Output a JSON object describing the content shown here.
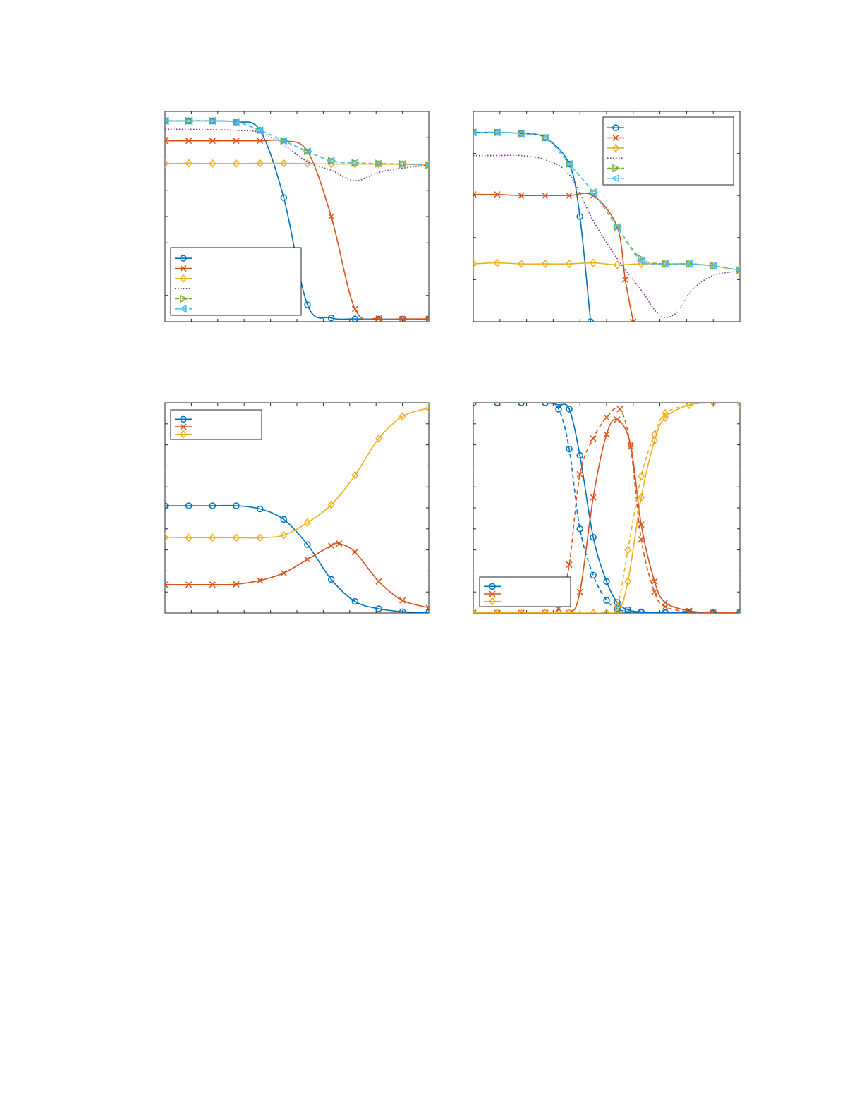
{
  "colors": {
    "blue": "#0072BD",
    "orange": "#D95319",
    "yellow": "#EDB120",
    "purple": "#7E2F8E",
    "green": "#77AC30",
    "cyan": "#4DBEEE",
    "axis": "#262626"
  },
  "chart_data": [
    {
      "type": "line",
      "panel": "top-left",
      "title": "",
      "xlabel": "",
      "ylabel": "",
      "xlim": [
        0,
        100
      ],
      "ylim": [
        0,
        1
      ],
      "grid": false,
      "legend": {
        "placement": "bottom-left",
        "entries": 6
      },
      "series": [
        {
          "color": "blue",
          "line": "solid",
          "marker": "circle",
          "x": [
            0,
            9,
            18,
            27,
            36,
            45,
            54,
            63,
            72,
            81,
            90,
            100
          ],
          "y": [
            0.955,
            0.955,
            0.955,
            0.95,
            0.91,
            0.59,
            0.08,
            0.018,
            0.013,
            0.012,
            0.012,
            0.012
          ]
        },
        {
          "color": "orange",
          "line": "solid",
          "marker": "x",
          "x": [
            0,
            9,
            18,
            27,
            36,
            45,
            54,
            63,
            72,
            81,
            90,
            100
          ],
          "y": [
            0.86,
            0.86,
            0.86,
            0.86,
            0.86,
            0.86,
            0.81,
            0.5,
            0.06,
            0.015,
            0.013,
            0.013
          ]
        },
        {
          "color": "yellow",
          "line": "solid",
          "marker": "diamond",
          "x": [
            0,
            9,
            18,
            27,
            36,
            45,
            54,
            63,
            72,
            81,
            90,
            100
          ],
          "y": [
            0.752,
            0.753,
            0.752,
            0.752,
            0.753,
            0.753,
            0.752,
            0.75,
            0.75,
            0.749,
            0.748,
            0.745
          ]
        },
        {
          "color": "purple",
          "line": "dotted",
          "marker": "none",
          "x": [
            0,
            9,
            18,
            27,
            36,
            45,
            54,
            63,
            72,
            81,
            90,
            100
          ],
          "y": [
            0.915,
            0.915,
            0.913,
            0.91,
            0.9,
            0.84,
            0.76,
            0.72,
            0.67,
            0.71,
            0.73,
            0.745
          ]
        },
        {
          "color": "green",
          "line": "dashed",
          "marker": "triangle-right",
          "x": [
            0,
            9,
            18,
            27,
            36,
            45,
            54,
            63,
            72,
            81,
            90,
            100
          ],
          "y": [
            0.955,
            0.955,
            0.955,
            0.95,
            0.91,
            0.86,
            0.81,
            0.765,
            0.755,
            0.752,
            0.75,
            0.745
          ]
        },
        {
          "color": "cyan",
          "line": "dashed",
          "marker": "triangle-left",
          "x": [
            0,
            9,
            18,
            27,
            36,
            45,
            54,
            63,
            72,
            81,
            90,
            100
          ],
          "y": [
            0.955,
            0.955,
            0.955,
            0.95,
            0.91,
            0.86,
            0.81,
            0.765,
            0.755,
            0.752,
            0.75,
            0.745
          ]
        }
      ]
    },
    {
      "type": "line",
      "panel": "top-right",
      "title": "",
      "xlabel": "",
      "ylabel": "",
      "xlim": [
        0,
        100
      ],
      "ylim": [
        0,
        1
      ],
      "grid": false,
      "legend": {
        "placement": "top-right",
        "entries": 6
      },
      "series": [
        {
          "color": "blue",
          "line": "solid",
          "marker": "circle",
          "x": [
            0,
            9,
            18,
            27,
            36,
            40,
            44
          ],
          "y": [
            0.9,
            0.9,
            0.895,
            0.875,
            0.75,
            0.5,
            0.0
          ]
        },
        {
          "color": "orange",
          "line": "solid",
          "marker": "x",
          "x": [
            0,
            9,
            18,
            27,
            36,
            45,
            54,
            57,
            60
          ],
          "y": [
            0.605,
            0.605,
            0.6,
            0.6,
            0.6,
            0.6,
            0.45,
            0.2,
            0.0
          ]
        },
        {
          "color": "yellow",
          "line": "solid",
          "marker": "diamond",
          "x": [
            0,
            9,
            18,
            27,
            36,
            45,
            54,
            63,
            72,
            81,
            90,
            100
          ],
          "y": [
            0.275,
            0.28,
            0.275,
            0.275,
            0.275,
            0.28,
            0.27,
            0.275,
            0.275,
            0.275,
            0.265,
            0.245
          ]
        },
        {
          "color": "purple",
          "line": "dotted",
          "marker": "none",
          "x": [
            0,
            9,
            18,
            27,
            36,
            45,
            54,
            63,
            70,
            76,
            82,
            90,
            100
          ],
          "y": [
            0.79,
            0.79,
            0.79,
            0.77,
            0.7,
            0.48,
            0.3,
            0.15,
            0.03,
            0.04,
            0.15,
            0.22,
            0.24
          ]
        },
        {
          "color": "green",
          "line": "dashed",
          "marker": "triangle-right",
          "x": [
            0,
            9,
            18,
            27,
            36,
            45,
            54,
            63,
            72,
            81,
            90,
            100
          ],
          "y": [
            0.9,
            0.9,
            0.895,
            0.875,
            0.75,
            0.615,
            0.45,
            0.3,
            0.275,
            0.275,
            0.265,
            0.245
          ]
        },
        {
          "color": "cyan",
          "line": "dashed",
          "marker": "triangle-left",
          "x": [
            0,
            9,
            18,
            27,
            36,
            45,
            54,
            63,
            72,
            81,
            90,
            100
          ],
          "y": [
            0.9,
            0.9,
            0.895,
            0.875,
            0.75,
            0.615,
            0.45,
            0.29,
            0.275,
            0.275,
            0.265,
            0.245
          ]
        }
      ]
    },
    {
      "type": "line",
      "panel": "bottom-left",
      "title": "",
      "xlabel": "",
      "ylabel": "",
      "xlim": [
        0,
        100
      ],
      "ylim": [
        0,
        1
      ],
      "grid": false,
      "legend": {
        "placement": "top-left",
        "entries": 3
      },
      "series": [
        {
          "color": "blue",
          "line": "solid",
          "marker": "circle",
          "x": [
            0,
            9,
            18,
            27,
            36,
            45,
            54,
            63,
            72,
            81,
            90,
            100
          ],
          "y": [
            0.51,
            0.51,
            0.51,
            0.51,
            0.495,
            0.445,
            0.325,
            0.16,
            0.055,
            0.02,
            0.006,
            0.002
          ]
        },
        {
          "color": "orange",
          "line": "solid",
          "marker": "x",
          "x": [
            0,
            9,
            18,
            27,
            36,
            45,
            54,
            63,
            66,
            72,
            81,
            90,
            100
          ],
          "y": [
            0.135,
            0.135,
            0.135,
            0.137,
            0.155,
            0.19,
            0.255,
            0.32,
            0.33,
            0.29,
            0.15,
            0.06,
            0.025
          ]
        },
        {
          "color": "yellow",
          "line": "solid",
          "marker": "diamond",
          "x": [
            0,
            9,
            18,
            27,
            36,
            45,
            54,
            63,
            72,
            81,
            90,
            100
          ],
          "y": [
            0.36,
            0.358,
            0.358,
            0.358,
            0.358,
            0.37,
            0.43,
            0.515,
            0.655,
            0.83,
            0.935,
            0.975
          ]
        }
      ]
    },
    {
      "type": "line",
      "panel": "bottom-right",
      "title": "",
      "xlabel": "",
      "ylabel": "",
      "xlim": [
        0,
        100
      ],
      "ylim": [
        0,
        1
      ],
      "grid": false,
      "legend": {
        "placement": "bottom-left",
        "entries": 3
      },
      "series": [
        {
          "color": "blue",
          "line": "solid",
          "marker": "circle",
          "x": [
            0,
            9,
            18,
            27,
            32,
            36,
            40,
            45,
            50,
            54,
            58,
            63,
            72,
            81,
            90,
            100
          ],
          "y": [
            1.0,
            1.0,
            1.0,
            1.0,
            0.99,
            0.97,
            0.75,
            0.36,
            0.15,
            0.05,
            0.015,
            0.005,
            0.002,
            0.001,
            0.001,
            0.001
          ]
        },
        {
          "color": "orange",
          "line": "solid",
          "marker": "x",
          "x": [
            0,
            9,
            18,
            27,
            36,
            40,
            45,
            50,
            54,
            59,
            63,
            68,
            72,
            81,
            90,
            100
          ],
          "y": [
            0.0,
            0.0,
            0.0,
            0.0,
            0.0,
            0.1,
            0.55,
            0.85,
            0.92,
            0.8,
            0.42,
            0.15,
            0.05,
            0.01,
            0.002,
            0.001
          ]
        },
        {
          "color": "yellow",
          "line": "solid",
          "marker": "diamond",
          "x": [
            0,
            9,
            18,
            27,
            36,
            45,
            54,
            58,
            63,
            68,
            72,
            81,
            90,
            100
          ],
          "y": [
            0.0,
            0.0,
            0.0,
            0.0,
            0.0,
            0.0,
            0.01,
            0.15,
            0.55,
            0.82,
            0.93,
            0.99,
            1.0,
            1.0
          ]
        },
        {
          "color": "blue",
          "line": "dashed",
          "marker": "circle",
          "x": [
            0,
            9,
            18,
            27,
            32,
            36,
            40,
            45,
            50,
            54,
            58,
            63,
            72,
            81,
            90,
            100
          ],
          "y": [
            1.0,
            1.0,
            1.0,
            1.0,
            0.97,
            0.78,
            0.4,
            0.18,
            0.06,
            0.02,
            0.006,
            0.002,
            0.001,
            0.001,
            0.001,
            0.001
          ]
        },
        {
          "color": "orange",
          "line": "dashed",
          "marker": "x",
          "x": [
            0,
            9,
            18,
            27,
            32,
            36,
            40,
            45,
            50,
            55,
            59,
            63,
            68,
            72,
            81,
            90,
            100
          ],
          "y": [
            0.0,
            0.0,
            0.0,
            0.0,
            0.02,
            0.23,
            0.66,
            0.83,
            0.93,
            0.97,
            0.79,
            0.35,
            0.1,
            0.03,
            0.005,
            0.001,
            0.001
          ]
        },
        {
          "color": "yellow",
          "line": "dashed",
          "marker": "diamond",
          "x": [
            0,
            9,
            18,
            27,
            36,
            45,
            50,
            54,
            58,
            63,
            68,
            72,
            81,
            90,
            100
          ],
          "y": [
            0.0,
            0.0,
            0.0,
            0.0,
            0.0,
            0.0,
            0.0,
            0.03,
            0.3,
            0.65,
            0.85,
            0.95,
            0.99,
            1.0,
            1.0
          ]
        }
      ]
    }
  ]
}
